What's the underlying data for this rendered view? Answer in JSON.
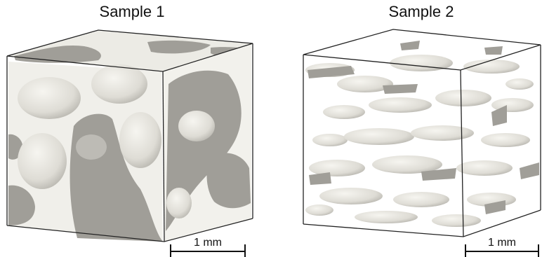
{
  "panels": [
    {
      "title": "Sample 1",
      "scale_label": "1 mm"
    },
    {
      "title": "Sample 2",
      "scale_label": "1 mm"
    }
  ],
  "colors": {
    "background": "#ffffff",
    "surface": "#e9e8e2",
    "surface_shade": "#c9c8c2",
    "cut_face": "#a09e98",
    "edge": "#222222"
  }
}
